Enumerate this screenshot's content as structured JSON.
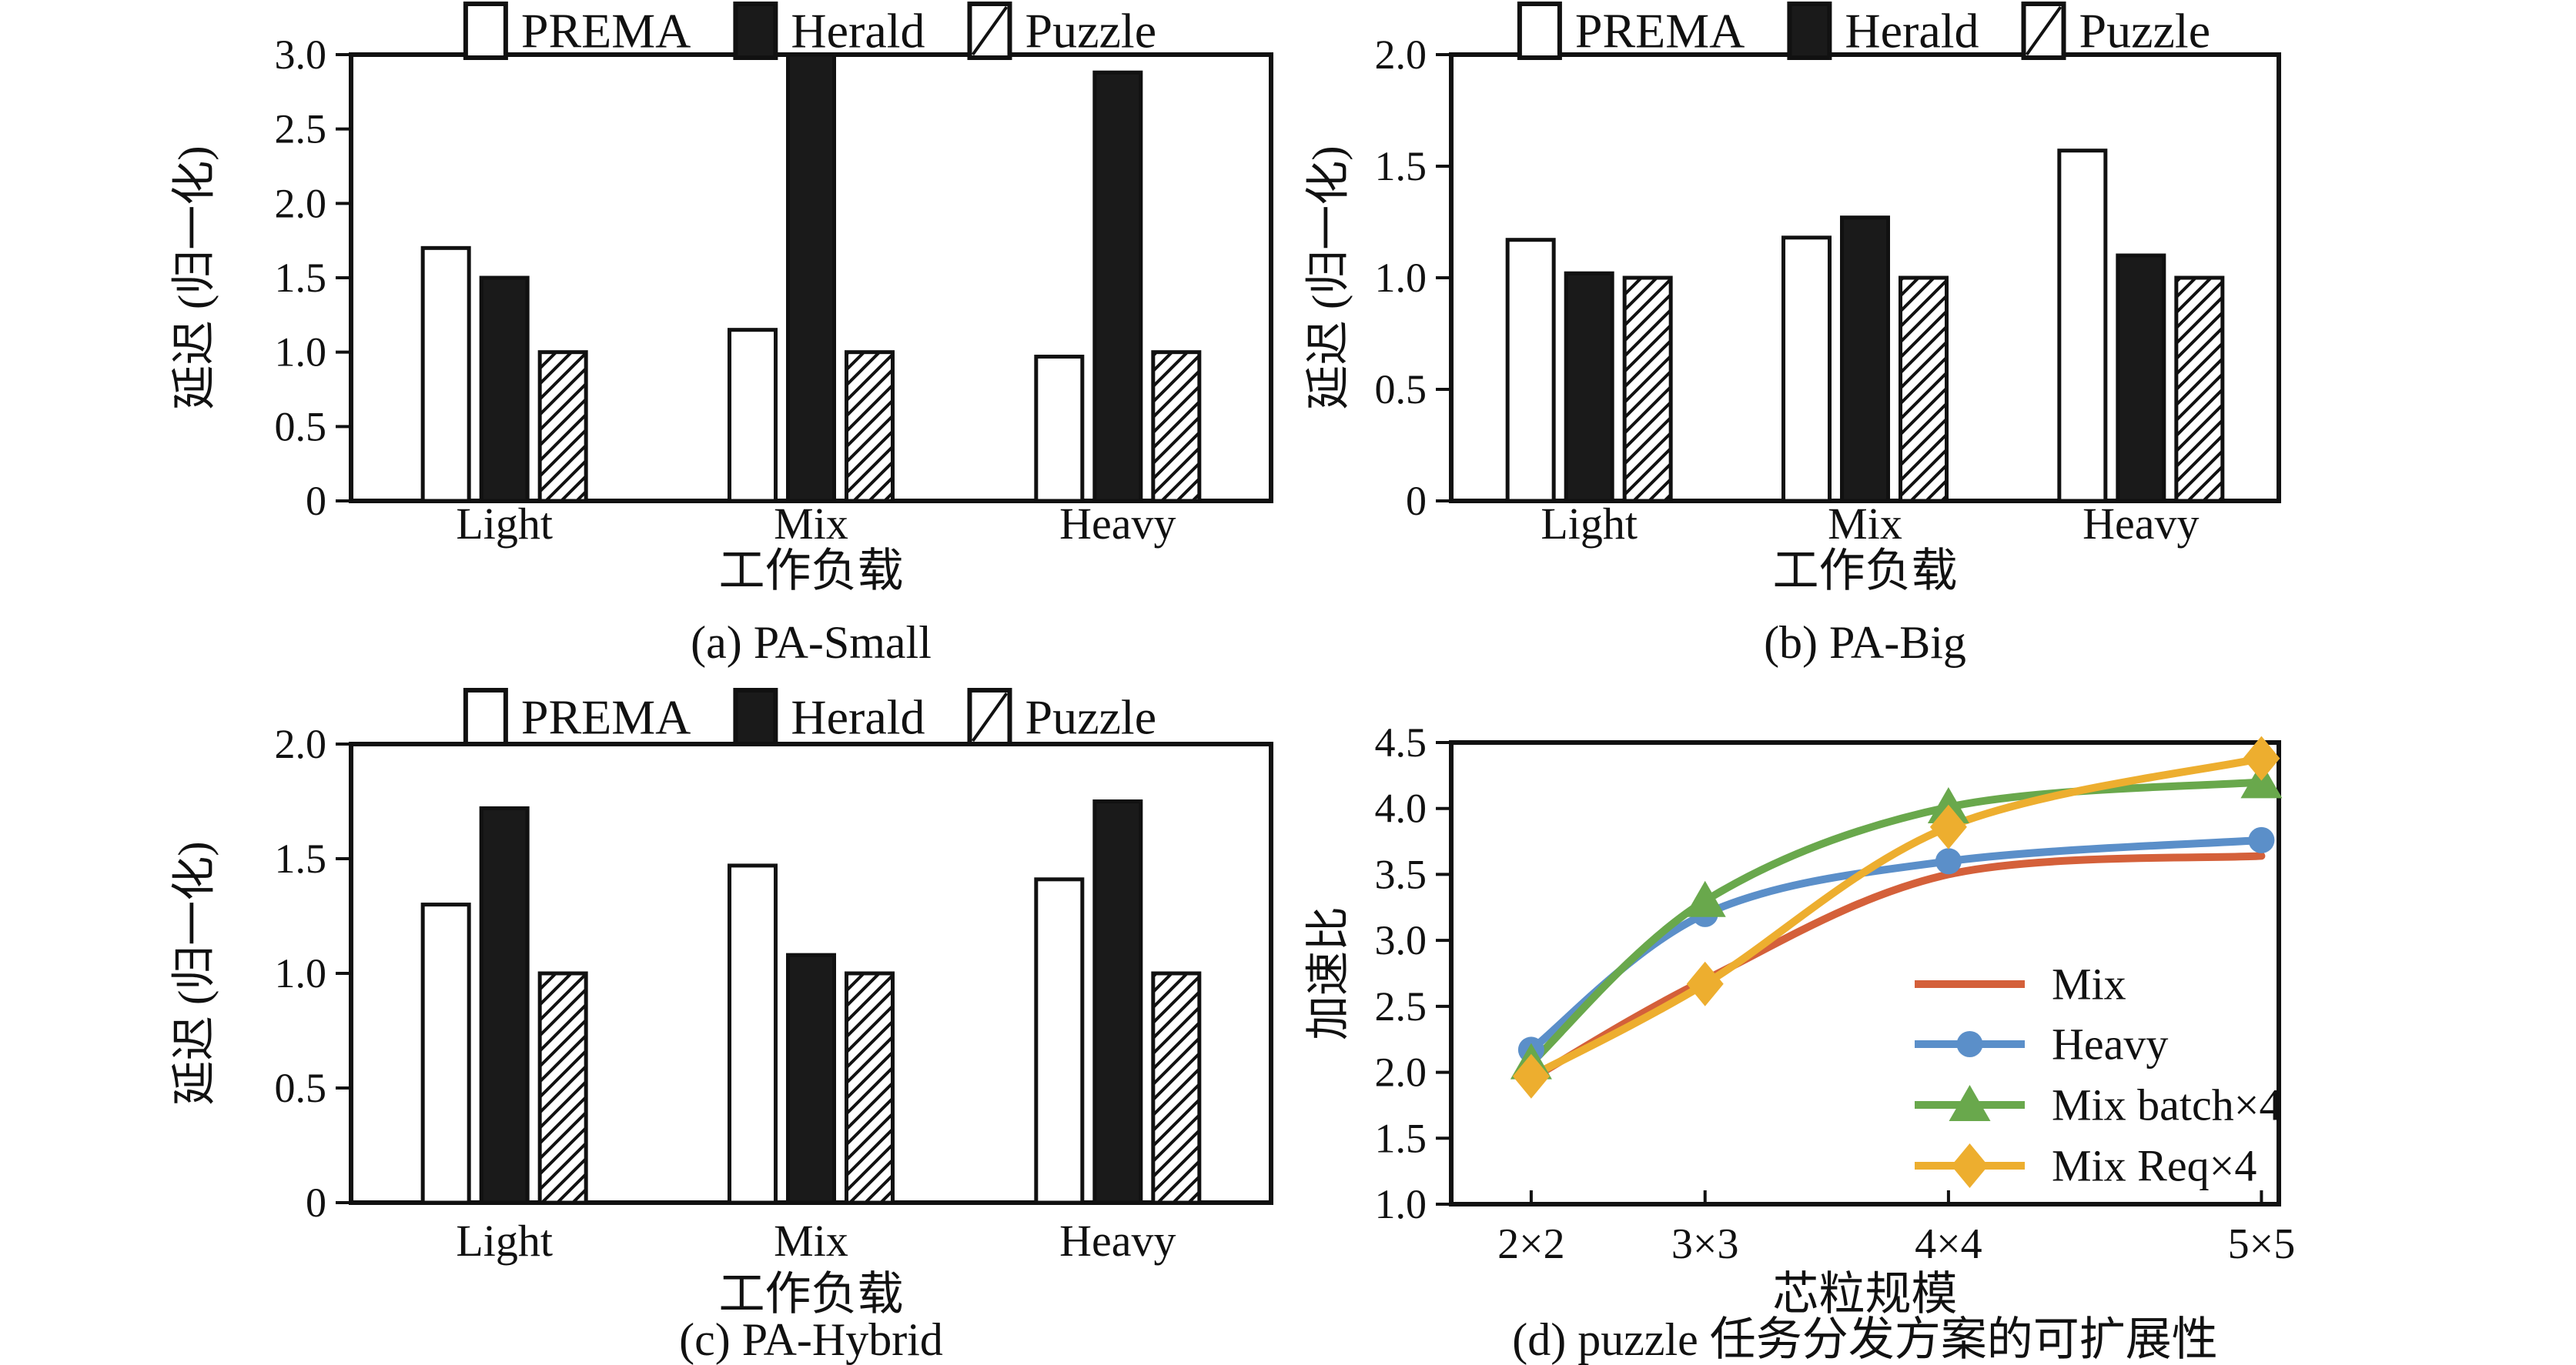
{
  "figure": {
    "background": "#ffffff",
    "panel_count": 4
  },
  "colors": {
    "axis": "#111111",
    "bar_solid": "#1a1a1a",
    "bar_open": "#ffffff",
    "line_mix": "#d4603a",
    "line_heavy": "#5b8fc9",
    "line_mix_batch": "#69a84c",
    "line_mix_req": "#edae2f"
  },
  "chart_data": [
    {
      "id": "a",
      "type": "bar",
      "title": "(a) PA-Small",
      "xlabel": "工作负载",
      "ylabel": "延迟 (归一化)",
      "categories": [
        "Light",
        "Mix",
        "Heavy"
      ],
      "series": [
        {
          "name": "PREMA",
          "fill": "open",
          "values": [
            1.7,
            1.15,
            0.97
          ]
        },
        {
          "name": "Herald",
          "fill": "solid",
          "values": [
            1.5,
            3.0,
            2.88
          ]
        },
        {
          "name": "Puzzle",
          "fill": "hatch",
          "values": [
            1.0,
            1.0,
            1.0
          ]
        }
      ],
      "ylim": [
        0,
        3.0
      ],
      "yticks": [
        0,
        0.5,
        1.0,
        1.5,
        2.0,
        2.5,
        3.0
      ],
      "ytick_labels": [
        "0",
        "0.5",
        "1.0",
        "1.5",
        "2.0",
        "2.5",
        "3.0"
      ],
      "legend_position": "top",
      "note": "Herald bar for Mix reaches the axis maximum 3.0 (clipped)"
    },
    {
      "id": "b",
      "type": "bar",
      "title": "(b) PA-Big",
      "xlabel": "工作负载",
      "ylabel": "延迟 (归一化)",
      "categories": [
        "Light",
        "Mix",
        "Heavy"
      ],
      "series": [
        {
          "name": "PREMA",
          "fill": "open",
          "values": [
            1.17,
            1.18,
            1.57
          ]
        },
        {
          "name": "Herald",
          "fill": "solid",
          "values": [
            1.02,
            1.27,
            1.1
          ]
        },
        {
          "name": "Puzzle",
          "fill": "hatch",
          "values": [
            1.0,
            1.0,
            1.0
          ]
        }
      ],
      "ylim": [
        0,
        2.0
      ],
      "yticks": [
        0,
        0.5,
        1.0,
        1.5,
        2.0
      ],
      "ytick_labels": [
        "0",
        "0.5",
        "1.0",
        "1.5",
        "2.0"
      ],
      "legend_position": "top"
    },
    {
      "id": "c",
      "type": "bar",
      "title": "(c) PA-Hybrid",
      "xlabel": "工作负载",
      "ylabel": "延迟 (归一化)",
      "categories": [
        "Light",
        "Mix",
        "Heavy"
      ],
      "series": [
        {
          "name": "PREMA",
          "fill": "open",
          "values": [
            1.3,
            1.47,
            1.41
          ]
        },
        {
          "name": "Herald",
          "fill": "solid",
          "values": [
            1.72,
            1.08,
            1.75
          ]
        },
        {
          "name": "Puzzle",
          "fill": "hatch",
          "values": [
            1.0,
            1.0,
            1.0
          ]
        }
      ],
      "ylim": [
        0,
        2.0
      ],
      "yticks": [
        0,
        0.5,
        1.0,
        1.5,
        2.0
      ],
      "ytick_labels": [
        "0",
        "0.5",
        "1.0",
        "1.5",
        "2.0"
      ],
      "legend_position": "top"
    },
    {
      "id": "d",
      "type": "line",
      "title": "(d) puzzle 任务分发方案的可扩展性",
      "xlabel": "芯粒规模",
      "ylabel": "加速比",
      "x": [
        4,
        9,
        16,
        25
      ],
      "xtick_labels": [
        "2×2",
        "3×3",
        "4×4",
        "5×5"
      ],
      "xlim": [
        1.7,
        25.5
      ],
      "ylim": [
        1.0,
        4.5
      ],
      "yticks": [
        1.0,
        1.5,
        2.0,
        2.5,
        3.0,
        3.5,
        4.0,
        4.5
      ],
      "ytick_labels": [
        "1.0",
        "1.5",
        "2.0",
        "2.5",
        "3.0",
        "3.5",
        "4.0",
        "4.5"
      ],
      "series": [
        {
          "name": "Mix",
          "color": "#d4603a",
          "marker": "none",
          "values": [
            1.95,
            2.7,
            3.5,
            3.64
          ]
        },
        {
          "name": "Heavy",
          "color": "#5b8fc9",
          "marker": "circle",
          "values": [
            2.17,
            3.2,
            3.6,
            3.76
          ]
        },
        {
          "name": "Mix batch×4",
          "color": "#69a84c",
          "marker": "triangle",
          "values": [
            2.07,
            3.3,
            4.01,
            4.2
          ]
        },
        {
          "name": "Mix Req×4",
          "color": "#edae2f",
          "marker": "diamond",
          "values": [
            1.97,
            2.67,
            3.86,
            4.38
          ]
        }
      ],
      "legend_position": "inside-lower-right",
      "grid": false
    }
  ]
}
